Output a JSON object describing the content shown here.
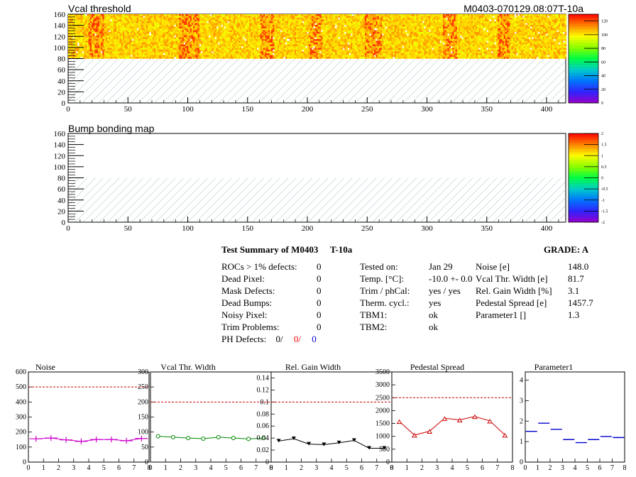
{
  "header": {
    "title_left": "Vcal threshold",
    "title_right": "M0403-070129.08:07T-10a"
  },
  "maps": [
    {
      "title": "Vcal threshold",
      "xticks": [
        "0",
        "50",
        "100",
        "150",
        "200",
        "250",
        "300",
        "350",
        "400"
      ],
      "yticks": [
        "0",
        "20",
        "40",
        "60",
        "80",
        "100",
        "120",
        "140",
        "160"
      ],
      "colorbar_ticks": [
        "0",
        "20",
        "40",
        "60",
        "80",
        "100",
        "120"
      ],
      "colorbar_range": [
        0,
        130
      ],
      "filled_rows": [
        80,
        160
      ],
      "xlim": [
        0,
        416
      ],
      "ylim": [
        0,
        160
      ]
    },
    {
      "title": "Bump bonding map",
      "xticks": [
        "0",
        "50",
        "100",
        "150",
        "200",
        "250",
        "300",
        "350",
        "400"
      ],
      "yticks": [
        "0",
        "20",
        "40",
        "60",
        "80",
        "100",
        "120",
        "140",
        "160"
      ],
      "colorbar_ticks": [
        "-2",
        "-1.5",
        "-1",
        "-0.5",
        "0",
        "0.5",
        "1",
        "1.5",
        "2"
      ],
      "colorbar_range": [
        -2,
        2
      ],
      "xlim": [
        0,
        416
      ],
      "ylim": [
        0,
        160
      ]
    }
  ],
  "summary": {
    "title": "Test Summary of M0403",
    "temp_label": "T-10a",
    "grade": "GRADE:  A",
    "defects": [
      {
        "label": "ROCs > 1% defects:",
        "value": "0"
      },
      {
        "label": "Dead Pixel:",
        "value": "0"
      },
      {
        "label": "Mask Defects:",
        "value": "0"
      },
      {
        "label": "Dead Bumps:",
        "value": "0"
      },
      {
        "label": "Noisy Pixel:",
        "value": "0"
      },
      {
        "label": "Trim Problems:",
        "value": "0"
      }
    ],
    "ph_defects": {
      "label": "PH Defects:",
      "v1": "0/",
      "v2": "0/",
      "v3": "0",
      "c2": "#ff0000",
      "c3": "#0000cc"
    },
    "conditions": [
      {
        "label": "Tested on:",
        "value": "Jan 29"
      },
      {
        "label": "Temp. [°C]:",
        "value": "-10.0 +- 0.0"
      },
      {
        "label": "Trim / phCal:",
        "value": "yes / yes"
      },
      {
        "label": "Therm. cycl.:",
        "value": "yes"
      },
      {
        "label": "TBM1:",
        "value": "ok"
      },
      {
        "label": "TBM2:",
        "value": "ok"
      }
    ],
    "results": [
      {
        "label": "Noise [e]",
        "value": "148.0"
      },
      {
        "label": "Vcal Thr. Width [e]",
        "value": "81.7"
      },
      {
        "label": "Rel. Gain Width [%]",
        "value": "3.1"
      },
      {
        "label": "Pedestal Spread [e]",
        "value": "1457.7"
      },
      {
        "label": "Parameter1 []",
        "value": "1.3"
      }
    ]
  },
  "chart_data": [
    {
      "type": "line",
      "title": "Noise",
      "color": "#cc00cc",
      "marker": "cross",
      "x": [
        0.5,
        1.5,
        2.5,
        3.5,
        4.5,
        5.5,
        6.5,
        7.5
      ],
      "values": [
        155,
        160,
        148,
        138,
        150,
        150,
        142,
        157
      ],
      "ylim": [
        0,
        600
      ],
      "yticks": [
        "0",
        "100",
        "200",
        "300",
        "400",
        "500",
        "600"
      ],
      "xticks": [
        "0",
        "1",
        "2",
        "3",
        "4",
        "5",
        "6",
        "7",
        "8"
      ],
      "xlim": [
        0,
        8
      ],
      "limit": 500
    },
    {
      "type": "line",
      "title": "Vcal Thr. Width",
      "color": "#008800",
      "marker": "circle",
      "x": [
        0.5,
        1.5,
        2.5,
        3.5,
        4.5,
        5.5,
        6.5,
        7.5
      ],
      "values": [
        86,
        83,
        80,
        78,
        83,
        80,
        77,
        80
      ],
      "ylim": [
        0,
        300
      ],
      "yticks": [
        "0",
        "50",
        "100",
        "150",
        "200",
        "250",
        "300"
      ],
      "xticks": [
        "0",
        "1",
        "2",
        "3",
        "4",
        "5",
        "6",
        "7",
        "8"
      ],
      "xlim": [
        0,
        8
      ],
      "limit": 200
    },
    {
      "type": "line",
      "title": "Rel. Gain Width",
      "color": "#000000",
      "marker": "triangle-down",
      "x": [
        0.5,
        1.5,
        2.5,
        3.5,
        4.5,
        5.5,
        6.5,
        7.5
      ],
      "values": [
        0.035,
        0.039,
        0.03,
        0.029,
        0.032,
        0.036,
        0.023,
        0.023
      ],
      "ylim": [
        0,
        0.15
      ],
      "yticks": [
        "0",
        "0.02",
        "0.04",
        "0.06",
        "0.08",
        "0.1",
        "0.12",
        "0.14"
      ],
      "xticks": [
        "0",
        "1",
        "2",
        "3",
        "4",
        "5",
        "6",
        "7",
        "8"
      ],
      "xlim": [
        0,
        8
      ],
      "limit": 0.1
    },
    {
      "type": "line",
      "title": "Pedestal Spread",
      "color": "#cc0000",
      "marker": "triangle-up",
      "x": [
        0.5,
        1.5,
        2.5,
        3.5,
        4.5,
        5.5,
        6.5,
        7.5
      ],
      "values": [
        1580,
        1050,
        1200,
        1700,
        1640,
        1770,
        1600,
        1050
      ],
      "ylim": [
        0,
        3500
      ],
      "yticks": [
        "0",
        "500",
        "1000",
        "1500",
        "2000",
        "2500",
        "3000",
        "3500"
      ],
      "xticks": [
        "0",
        "1",
        "2",
        "3",
        "4",
        "5",
        "6",
        "7",
        "8"
      ],
      "xlim": [
        0,
        8
      ],
      "limit": 2500
    },
    {
      "type": "scatter",
      "title": "Parameter1",
      "color": "#0000cc",
      "marker": "hbar",
      "x": [
        0.5,
        1.5,
        2.5,
        3.5,
        4.5,
        5.5,
        6.5,
        7.5
      ],
      "values": [
        1.5,
        1.9,
        1.6,
        1.1,
        0.95,
        1.1,
        1.25,
        1.2
      ],
      "ylim": [
        0,
        4.4
      ],
      "yticks": [
        "0",
        "1",
        "2",
        "3",
        "4"
      ],
      "xticks": [
        "0",
        "1",
        "2",
        "3",
        "4",
        "5",
        "6",
        "7",
        "8"
      ],
      "xlim": [
        0,
        8
      ],
      "limit": null
    }
  ]
}
